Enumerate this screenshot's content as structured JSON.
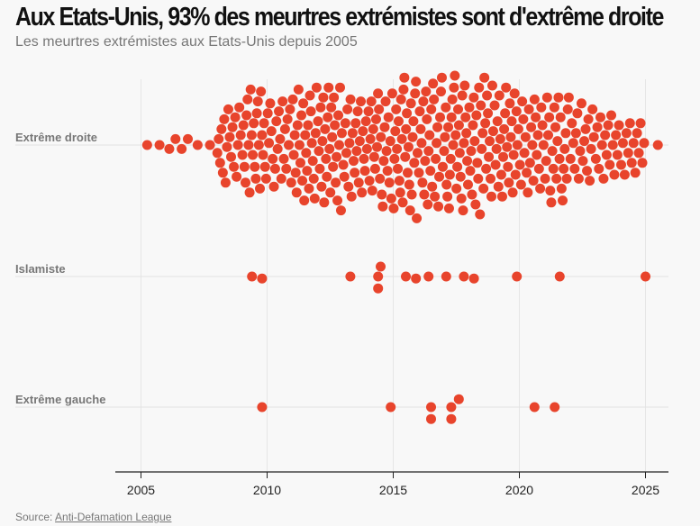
{
  "title": "Aux Etats-Unis, 93% des meurtres extrémistes sont d'extrême droite",
  "subtitle": "Les meurtres extrémistes aux Etats-Unis depuis 2005",
  "source": {
    "label": "Source:",
    "link": "Anti-Defamation League"
  },
  "colors": {
    "dot": "#e8442c",
    "grid": "#e6e6e6",
    "background": "#f8f8f8"
  },
  "chart_data": {
    "type": "scatter",
    "subtype": "beeswarm",
    "xlim": [
      2005,
      2025
    ],
    "x_ticks": [
      "2005",
      "2010",
      "2015",
      "2020",
      "2025"
    ],
    "categories": [
      "Extrême droite",
      "Islamiste",
      "Extrême gauche"
    ],
    "series": [
      {
        "name": "Extrême droite",
        "counts_by_year": {
          "2005": 2,
          "2006": 4,
          "2007": 2,
          "2008": 18,
          "2009": 24,
          "2010": 20,
          "2011": 26,
          "2012": 28,
          "2013": 24,
          "2014": 26,
          "2015": 30,
          "2016": 28,
          "2017": 30,
          "2018": 28,
          "2019": 26,
          "2020": 22,
          "2021": 24,
          "2022": 18,
          "2023": 16,
          "2024": 14,
          "2025": 1
        }
      },
      {
        "name": "Islamiste",
        "values": [
          2009.4,
          2009.8,
          2013.3,
          2014.4,
          2014.4,
          2014.5,
          2015.5,
          2015.9,
          2016.4,
          2017.1,
          2017.8,
          2018.2,
          2019.9,
          2021.6,
          2025.0
        ]
      },
      {
        "name": "Extrême gauche",
        "values": [
          2009.8,
          2014.9,
          2016.5,
          2016.5,
          2017.3,
          2017.3,
          2017.6,
          2020.6,
          2021.4
        ]
      }
    ]
  }
}
